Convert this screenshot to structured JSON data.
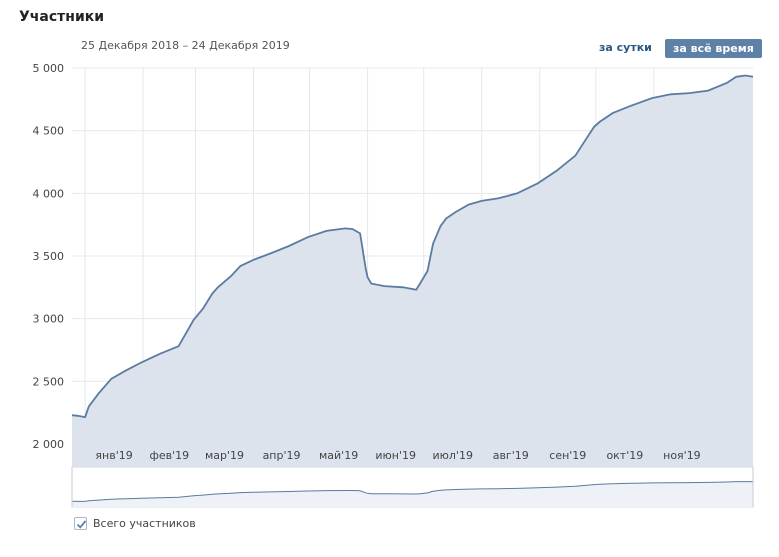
{
  "header": {
    "title": "Участники",
    "date_range": "25 Декабря 2018 – 24 Декабря 2019",
    "period_day": "за сутки",
    "period_all": "за всё время"
  },
  "legend": {
    "label": "Всего участников",
    "checked": true
  },
  "colors": {
    "line": "#5b7ba0",
    "fill": "#dde3ec",
    "grid": "#e4e8ed",
    "accent_button": "#5e81a8",
    "link": "#2a5885"
  },
  "chart_data": {
    "type": "area",
    "ylim": [
      2000,
      5000
    ],
    "y_ticks": [
      "2 000",
      "2 500",
      "3 000",
      "3 500",
      "4 000",
      "4 500",
      "5 000"
    ],
    "y_tick_values": [
      2000,
      2500,
      3000,
      3500,
      4000,
      4500,
      5000
    ],
    "x_ticks": [
      "янв'19",
      "фев'19",
      "мар'19",
      "апр'19",
      "май'19",
      "июн'19",
      "июл'19",
      "авг'19",
      "сен'19",
      "окт'19",
      "ноя'19"
    ],
    "x_tick_dates": [
      "2019-01-01",
      "2019-02-01",
      "2019-03-01",
      "2019-04-01",
      "2019-05-01",
      "2019-06-01",
      "2019-07-01",
      "2019-08-01",
      "2019-09-01",
      "2019-10-01",
      "2019-11-01"
    ],
    "x_range": [
      "2018-12-25",
      "2019-12-24"
    ],
    "grid": true,
    "series": [
      {
        "name": "Всего участников",
        "x": [
          "2018-12-25",
          "2018-12-28",
          "2019-01-01",
          "2019-01-03",
          "2019-01-08",
          "2019-01-15",
          "2019-01-22",
          "2019-01-31",
          "2019-02-10",
          "2019-02-20",
          "2019-02-28",
          "2019-03-05",
          "2019-03-10",
          "2019-03-13",
          "2019-03-20",
          "2019-03-25",
          "2019-04-01",
          "2019-04-10",
          "2019-04-20",
          "2019-04-30",
          "2019-05-10",
          "2019-05-20",
          "2019-05-24",
          "2019-05-28",
          "2019-05-31",
          "2019-06-01",
          "2019-06-03",
          "2019-06-10",
          "2019-06-20",
          "2019-06-27",
          "2019-06-29",
          "2019-07-03",
          "2019-07-06",
          "2019-07-10",
          "2019-07-13",
          "2019-07-18",
          "2019-07-25",
          "2019-08-01",
          "2019-08-10",
          "2019-08-20",
          "2019-08-31",
          "2019-09-10",
          "2019-09-20",
          "2019-09-30",
          "2019-10-03",
          "2019-10-10",
          "2019-10-20",
          "2019-10-31",
          "2019-11-10",
          "2019-11-20",
          "2019-11-30",
          "2019-12-10",
          "2019-12-15",
          "2019-12-20",
          "2019-12-24"
        ],
        "values": [
          2230,
          2225,
          2215,
          2300,
          2400,
          2520,
          2580,
          2650,
          2720,
          2780,
          2990,
          3080,
          3200,
          3250,
          3340,
          3420,
          3470,
          3520,
          3580,
          3650,
          3700,
          3720,
          3715,
          3680,
          3400,
          3330,
          3280,
          3260,
          3250,
          3230,
          3280,
          3380,
          3600,
          3740,
          3800,
          3850,
          3910,
          3940,
          3960,
          4000,
          4080,
          4180,
          4300,
          4530,
          4570,
          4640,
          4700,
          4760,
          4790,
          4800,
          4820,
          4880,
          4930,
          4940,
          4930
        ]
      }
    ]
  }
}
